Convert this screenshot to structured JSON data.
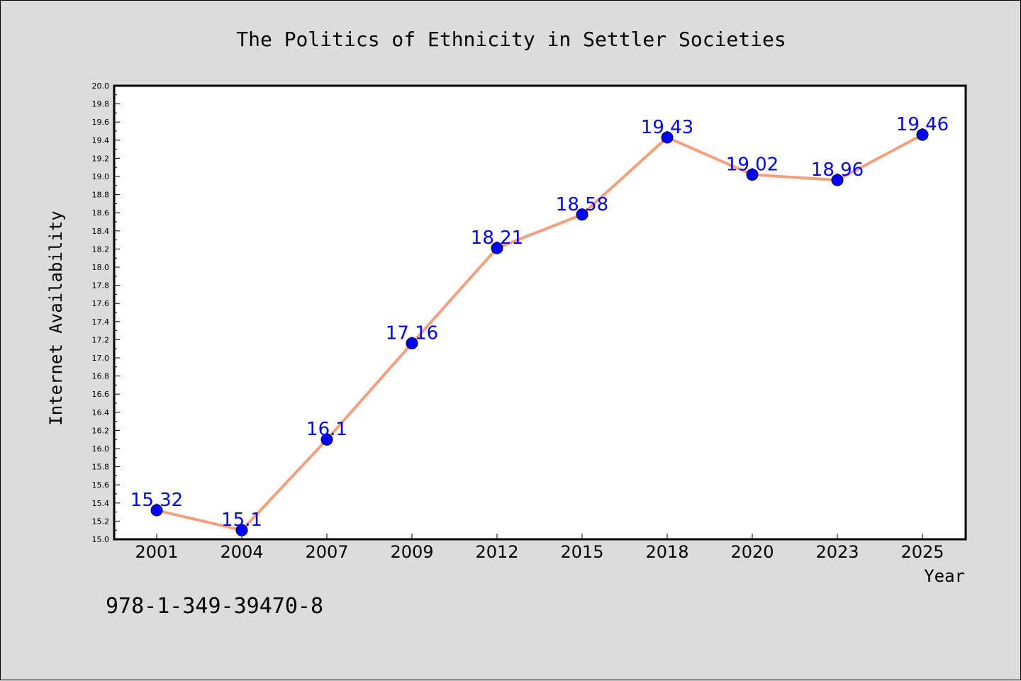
{
  "chart_data": {
    "type": "line",
    "title": "The Politics of Ethnicity in Settler Societies",
    "xlabel": "Year",
    "ylabel": "Internet Availability",
    "categories": [
      "2001",
      "2004",
      "2007",
      "2009",
      "2012",
      "2015",
      "2018",
      "2020",
      "2023",
      "2025"
    ],
    "series": [
      {
        "values": [
          15.32,
          15.1,
          16.1,
          17.16,
          18.21,
          18.58,
          19.43,
          19.02,
          18.96,
          19.46
        ],
        "labels": [
          "15.32",
          "15.1",
          "16.1",
          "17.16",
          "18.21",
          "18.58",
          "19.43",
          "19.02",
          "18.96",
          "19.46"
        ]
      }
    ],
    "ylim": [
      15.0,
      20.0
    ],
    "ytick_labels": [
      "15.0",
      "15.2",
      "15.4",
      "15.6",
      "15.8",
      "16.0",
      "16.2",
      "16.4",
      "16.6",
      "16.8",
      "17.0",
      "17.2",
      "17.4",
      "17.6",
      "17.8",
      "18.0",
      "18.2",
      "18.4",
      "18.6",
      "18.8",
      "19.0",
      "19.2",
      "19.4",
      "19.6",
      "19.8",
      "20.0"
    ],
    "grid": false,
    "legend": "none",
    "line_color": "#f4a07e",
    "marker_color": "#0000ff",
    "label_color": "#0000ff"
  },
  "footer": {
    "isbn": "978-1-349-39470-8"
  }
}
